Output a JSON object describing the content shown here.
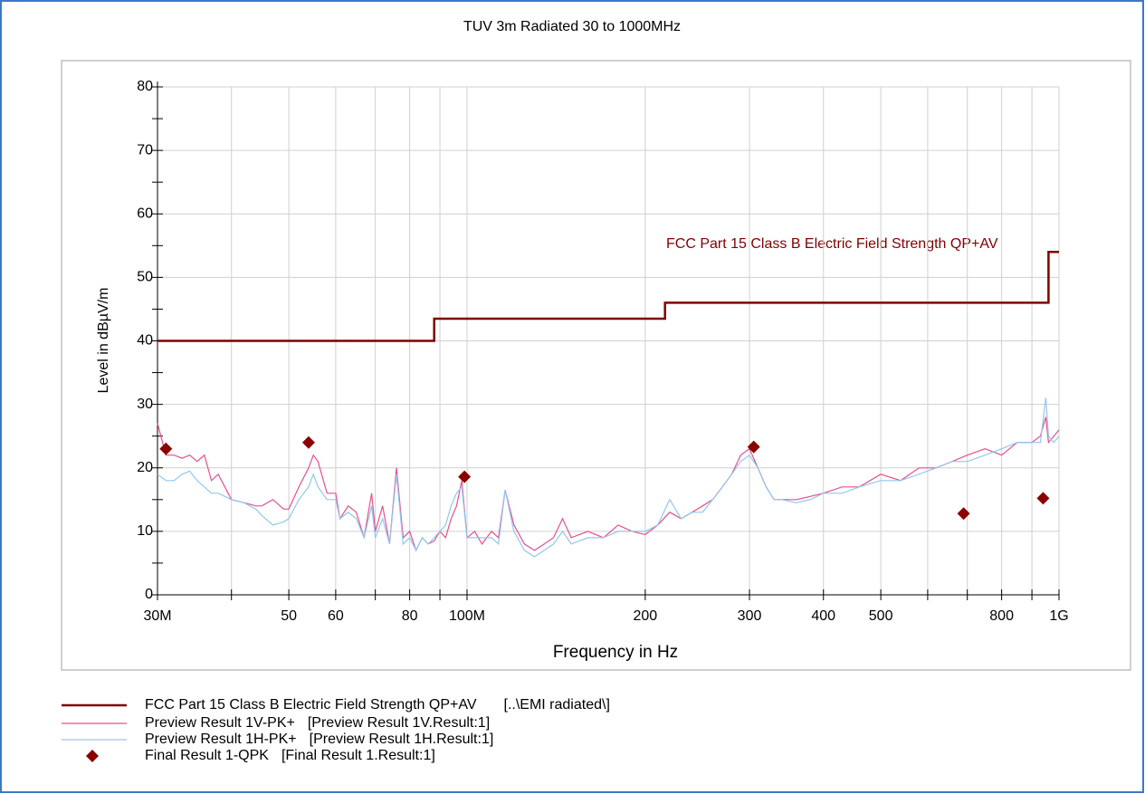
{
  "chart_data": {
    "type": "line",
    "title": "TUV 3m Radiated 30 to 1000MHz",
    "x_label": "Frequency in Hz",
    "y_label": "Level in dBµV/m",
    "xscale": "log",
    "xlim": [
      30,
      1000
    ],
    "ylim": [
      0,
      80
    ],
    "grid": true,
    "xticks": [
      {
        "value": 30,
        "label": "30M"
      },
      50,
      60,
      80,
      {
        "value": 100,
        "label": "100M"
      },
      200,
      300,
      400,
      500,
      800,
      {
        "value": 1000,
        "label": "1G"
      }
    ],
    "xminor_ticks": [
      40,
      70,
      90,
      600,
      700,
      900
    ],
    "yticks": [
      0,
      10,
      20,
      30,
      40,
      50,
      60,
      70,
      80
    ],
    "yminor_ticks": [
      5,
      15,
      25,
      35,
      45,
      55,
      65,
      75
    ],
    "annotation": "FCC Part 15 Class B Electric Field Strength QP+AV",
    "x": [
      30,
      31,
      32,
      33,
      34,
      35,
      36,
      37,
      38,
      40,
      42,
      44,
      45,
      47,
      49,
      50,
      52,
      54,
      55,
      56,
      58,
      60,
      61,
      63,
      65,
      67,
      69,
      70,
      72,
      74,
      76,
      78,
      80,
      82,
      84,
      86,
      88,
      90,
      92,
      94,
      96,
      98,
      100,
      103,
      106,
      110,
      113,
      116,
      120,
      125,
      130,
      135,
      140,
      145,
      150,
      160,
      170,
      180,
      190,
      200,
      210,
      220,
      230,
      240,
      250,
      260,
      270,
      280,
      290,
      300,
      310,
      320,
      330,
      340,
      360,
      380,
      400,
      430,
      460,
      500,
      540,
      580,
      620,
      660,
      700,
      750,
      800,
      850,
      900,
      930,
      950,
      960,
      980,
      1000
    ],
    "series": [
      {
        "name": "FCC Part 15 Class B Electric Field Strength QP+AV",
        "source": "[..\\EMI radiated\\]",
        "kind": "step",
        "color": "#800000",
        "x": [
          30,
          88,
          88,
          216,
          216,
          960,
          960,
          1000
        ],
        "values": [
          40,
          40,
          43.5,
          43.5,
          46,
          46,
          54,
          54
        ]
      },
      {
        "name": "Preview Result 1V-PK+",
        "source": "[Preview Result 1V.Result:1]",
        "kind": "line",
        "color": "#e8508a",
        "values": [
          27,
          22,
          22,
          21.5,
          22,
          21,
          22,
          18,
          19,
          15,
          14.5,
          14,
          14,
          15,
          13.5,
          13.5,
          17,
          20,
          22,
          21,
          16,
          16,
          12,
          14,
          13,
          9,
          16,
          10,
          14,
          8,
          20,
          9,
          10,
          7,
          9,
          8,
          8.5,
          10,
          9,
          12,
          14,
          18,
          9,
          10,
          8,
          10,
          9,
          16.5,
          11,
          8,
          7,
          8,
          9,
          12,
          9,
          10,
          9,
          11,
          10,
          9.5,
          11,
          13,
          12,
          13,
          14,
          15,
          17,
          19,
          22,
          23,
          20,
          17,
          15,
          15,
          15,
          15.5,
          16,
          17,
          17,
          19,
          18,
          20,
          20,
          21,
          22,
          23,
          22,
          24,
          24,
          25,
          28,
          24,
          25,
          26
        ]
      },
      {
        "name": "Preview Result 1H-PK+",
        "source": "[Preview Result 1H.Result:1]",
        "kind": "line",
        "color": "#90c8f0",
        "values": [
          19,
          18,
          18,
          19,
          19.5,
          18,
          17,
          16,
          16,
          15,
          14.5,
          13.5,
          12.5,
          11,
          11.5,
          12,
          15,
          17,
          19,
          17,
          15,
          15,
          12,
          13,
          12,
          9,
          14,
          9,
          12,
          8,
          19,
          8,
          9,
          7,
          9,
          8,
          9,
          10,
          11,
          14,
          16,
          17,
          9,
          9,
          9,
          9,
          8,
          16.5,
          10,
          7,
          6,
          7,
          8,
          10,
          8,
          9,
          9,
          10,
          10,
          10,
          11,
          15,
          12,
          13,
          13,
          15,
          17,
          19,
          21,
          22,
          20,
          17,
          15,
          15,
          14.5,
          15,
          16,
          16,
          17,
          18,
          18,
          19,
          20,
          21,
          21,
          22,
          23,
          24,
          24,
          24,
          31,
          25,
          24,
          25
        ]
      },
      {
        "name": "Final Result 1-QPK",
        "source": "[Final Result 1.Result:1]",
        "kind": "scatter",
        "color": "#8b0000",
        "x": [
          31,
          54,
          99,
          305,
          690,
          940
        ],
        "values": [
          23,
          24,
          18.6,
          23.3,
          12.8,
          15.2
        ]
      }
    ]
  }
}
